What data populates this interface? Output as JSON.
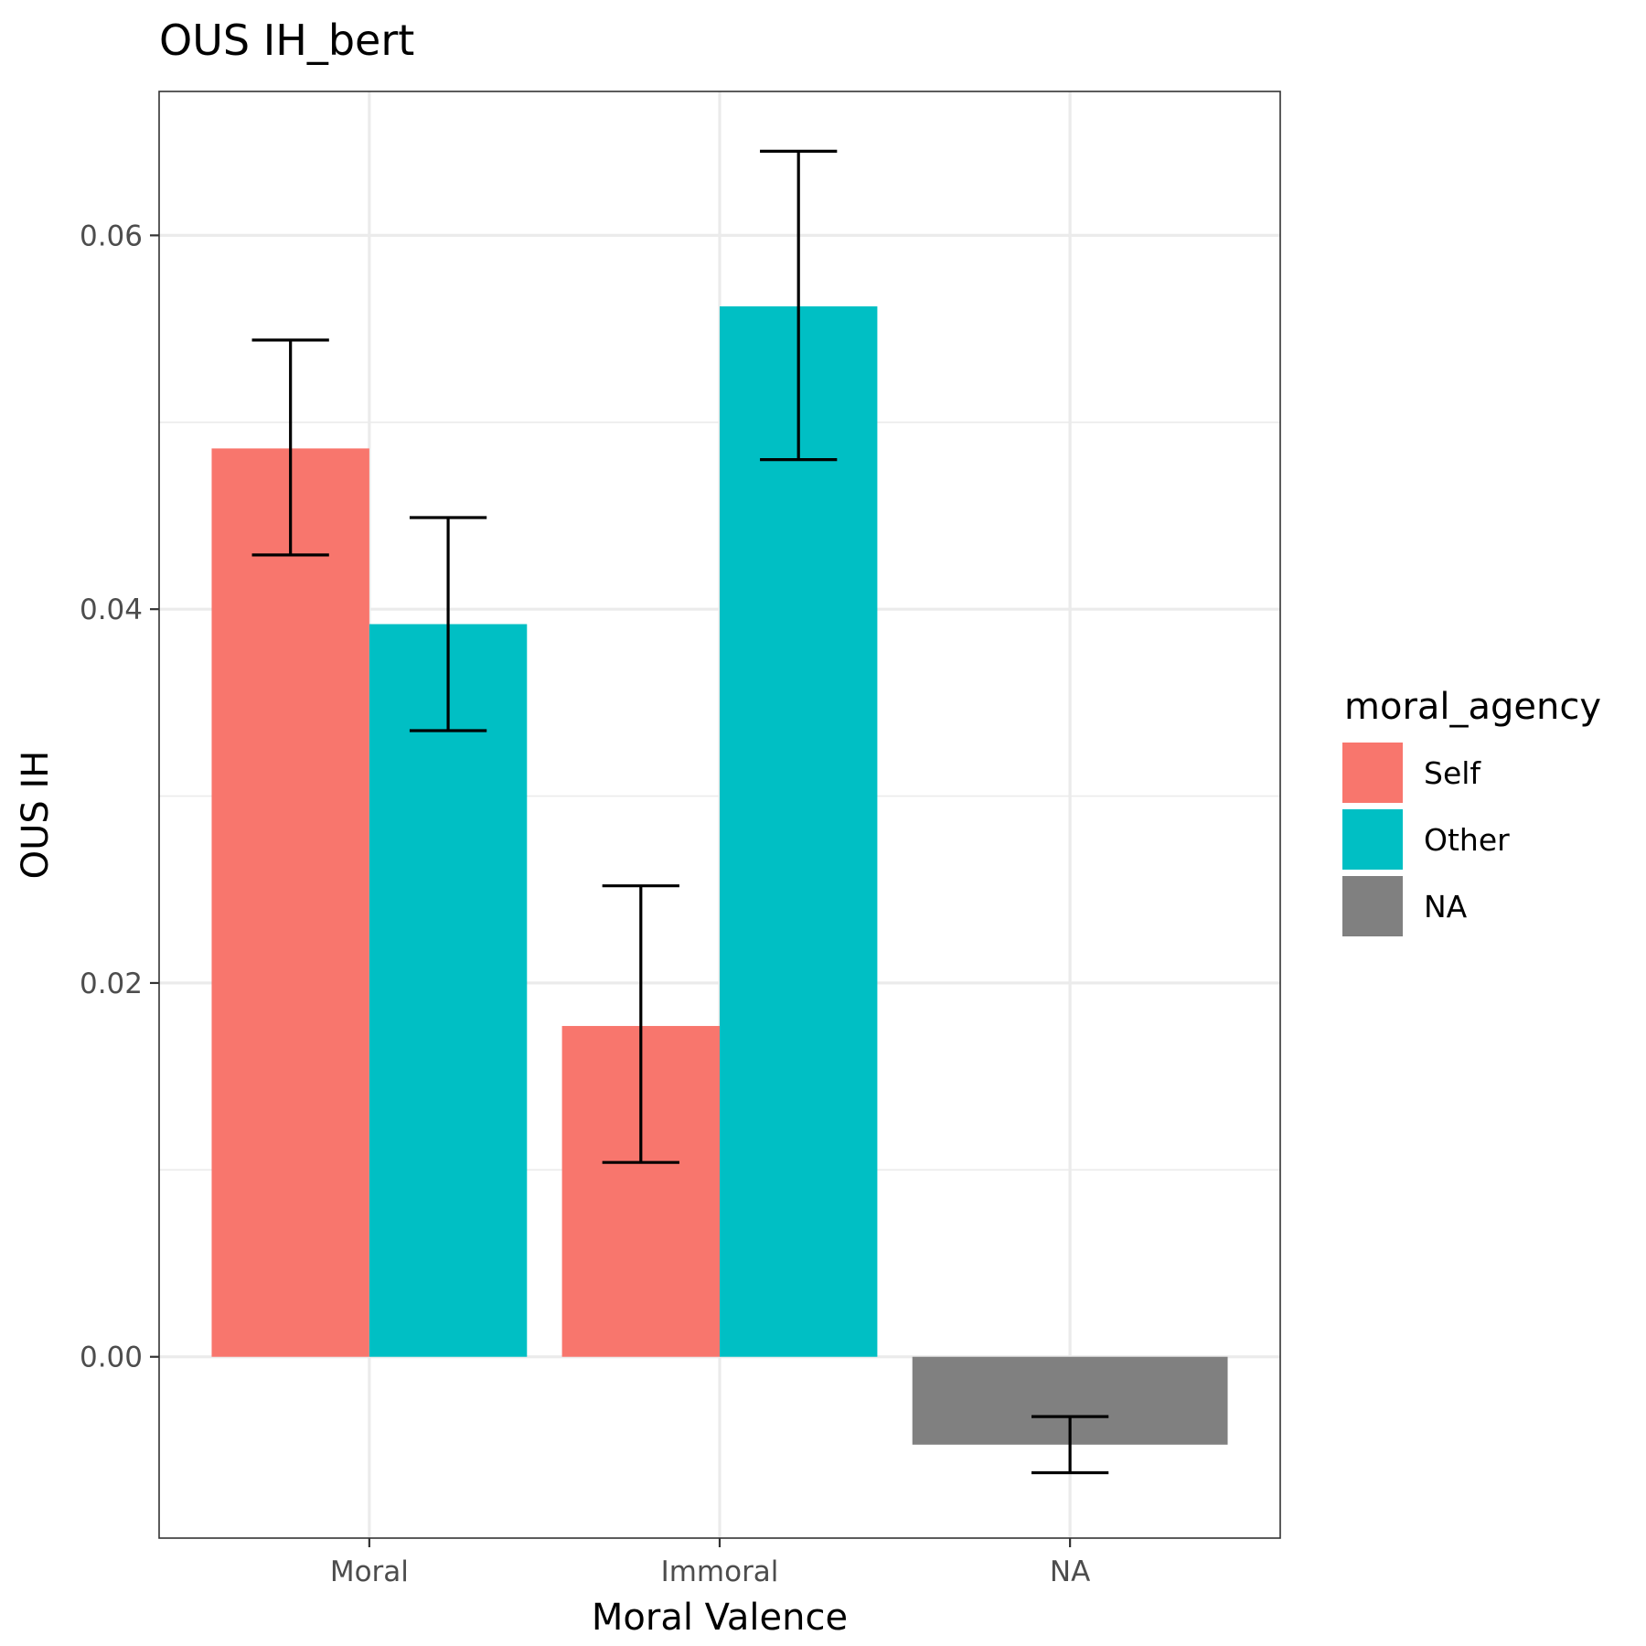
{
  "chart_data": {
    "type": "bar",
    "title": "OUS IH_bert",
    "xlabel": "Moral Valence",
    "ylabel": "OUS IH",
    "categories": [
      "Moral",
      "Immoral",
      "NA"
    ],
    "ylim": [
      -0.0097,
      0.0677
    ],
    "yticks": [
      0.0,
      0.02,
      0.04,
      0.06
    ],
    "ytick_labels": [
      "0.00",
      "0.02",
      "0.04",
      "0.06"
    ],
    "grid": true,
    "legend": {
      "title": "moral_agency",
      "position": "right",
      "entries": [
        {
          "label": "Self",
          "color": "#F8766D"
        },
        {
          "label": "Other",
          "color": "#00BFC4"
        },
        {
          "label": "NA",
          "color": "#808080"
        }
      ]
    },
    "series": [
      {
        "name": "Self",
        "color": "#F8766D",
        "values": [
          0.0486,
          0.0177,
          null
        ],
        "error_low": [
          0.0429,
          0.0104,
          null
        ],
        "error_high": [
          0.0544,
          0.0252,
          null
        ]
      },
      {
        "name": "Other",
        "color": "#00BFC4",
        "values": [
          0.0392,
          0.0562,
          null
        ],
        "error_low": [
          0.0335,
          0.048,
          null
        ],
        "error_high": [
          0.0449,
          0.0645,
          null
        ]
      },
      {
        "name": "NA",
        "color": "#808080",
        "values": [
          null,
          null,
          -0.0047
        ],
        "error_low": [
          null,
          null,
          -0.0062
        ],
        "error_high": [
          null,
          null,
          -0.0032
        ]
      }
    ]
  }
}
